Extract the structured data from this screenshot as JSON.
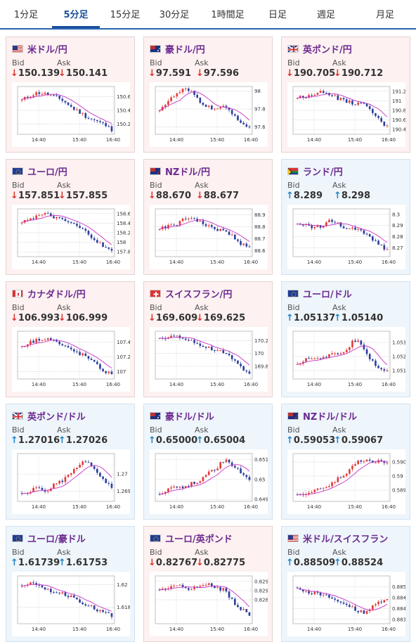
{
  "tabs": [
    {
      "label": "1分足",
      "active": false
    },
    {
      "label": "5分足",
      "active": true
    },
    {
      "label": "15分足",
      "active": false
    },
    {
      "label": "30分足",
      "active": false
    },
    {
      "label": "1時間足",
      "active": false
    },
    {
      "label": "日足",
      "active": false
    },
    {
      "label": "週足",
      "active": false
    },
    {
      "label": "月足",
      "active": false
    }
  ],
  "labels": {
    "bid": "Bid",
    "ask": "Ask"
  },
  "colors": {
    "down": "#d9342b",
    "up": "#1f86c8",
    "candle_up": "#e23b3b",
    "candle_down": "#2c3f9c",
    "ma": "#c431c4",
    "title": "#6b2a8f",
    "tab_active": "#1b4f9c"
  },
  "cards": [
    {
      "pair": "米ドル/円",
      "flags": [
        "us",
        "jp"
      ],
      "direction": "down",
      "bid": "150.139",
      "ask": "150.141",
      "x_ticks": [
        "14:40",
        "15:40",
        "16:40"
      ],
      "y_ticks": [
        "150.6",
        "150.4",
        "150.2"
      ],
      "y_range": [
        150.05,
        150.75
      ],
      "trend": [
        150.55,
        150.62,
        150.66,
        150.64,
        150.6,
        150.55,
        150.45,
        150.38,
        150.3,
        150.25,
        150.2,
        150.12
      ]
    },
    {
      "pair": "豪ドル/円",
      "flags": [
        "au",
        "jp"
      ],
      "direction": "down",
      "bid": "97.591",
      "ask": "97.596",
      "x_ticks": [
        "14:40",
        "15:40",
        "16:40"
      ],
      "y_ticks": [
        "98",
        "97.8",
        "97.6"
      ],
      "y_range": [
        97.52,
        98.05
      ],
      "trend": [
        97.8,
        97.88,
        97.96,
        98.02,
        97.98,
        97.88,
        97.82,
        97.8,
        97.82,
        97.75,
        97.65,
        97.58
      ]
    },
    {
      "pair": "英ポンド/円",
      "flags": [
        "gb",
        "jp"
      ],
      "direction": "down",
      "bid": "190.705",
      "ask": "190.712",
      "x_ticks": [
        "14:40",
        "15:40",
        "16:40"
      ],
      "y_ticks": [
        "191.2",
        "191",
        "190.8",
        "190.6",
        "190.4"
      ],
      "y_range": [
        190.3,
        191.3
      ],
      "trend": [
        191.05,
        191.1,
        191.15,
        191.18,
        191.15,
        191.05,
        190.98,
        190.95,
        190.92,
        190.8,
        190.6,
        190.45
      ]
    },
    {
      "pair": "ユーロ/円",
      "flags": [
        "eu",
        "jp"
      ],
      "direction": "down",
      "bid": "157.851",
      "ask": "157.855",
      "x_ticks": [
        "14:40",
        "15:40",
        "16:40"
      ],
      "y_ticks": [
        "158.6",
        "158.4",
        "158.2",
        "158",
        "157.8"
      ],
      "y_range": [
        157.7,
        158.7
      ],
      "trend": [
        158.45,
        158.5,
        158.55,
        158.58,
        158.52,
        158.45,
        158.4,
        158.3,
        158.2,
        158.05,
        157.9,
        157.8
      ]
    },
    {
      "pair": "NZドル/円",
      "flags": [
        "nz",
        "jp"
      ],
      "direction": "down",
      "bid": "88.670",
      "ask": "88.677",
      "x_ticks": [
        "14:40",
        "15:40",
        "16:40"
      ],
      "y_ticks": [
        "88.9",
        "88.8",
        "88.7",
        "88.6"
      ],
      "y_range": [
        88.55,
        88.95
      ],
      "trend": [
        88.78,
        88.8,
        88.82,
        88.86,
        88.88,
        88.84,
        88.8,
        88.78,
        88.76,
        88.72,
        88.66,
        88.62
      ]
    },
    {
      "pair": "ランド/円",
      "flags": [
        "za",
        "jp"
      ],
      "direction": "up",
      "bid": "8.289",
      "ask": "8.298",
      "x_ticks": [
        "14:40",
        "15:40",
        "16:40"
      ],
      "y_ticks": [
        "8.3",
        "8.29",
        "8.28",
        "8.27"
      ],
      "y_range": [
        8.262,
        8.305
      ],
      "trend": [
        8.29,
        8.292,
        8.288,
        8.29,
        8.296,
        8.292,
        8.288,
        8.286,
        8.285,
        8.28,
        8.272,
        8.268
      ]
    },
    {
      "pair": "カナダドル/円",
      "flags": [
        "ca",
        "jp"
      ],
      "direction": "down",
      "bid": "106.993",
      "ask": "106.999",
      "x_ticks": [
        "14:40",
        "15:40",
        "16:40"
      ],
      "y_ticks": [
        "107.4",
        "107.2",
        "107"
      ],
      "y_range": [
        106.9,
        107.55
      ],
      "trend": [
        107.35,
        107.4,
        107.44,
        107.46,
        107.42,
        107.35,
        107.3,
        107.25,
        107.2,
        107.1,
        107.02,
        106.96
      ]
    },
    {
      "pair": "スイスフラン/円",
      "flags": [
        "ch",
        "jp"
      ],
      "direction": "down",
      "bid": "169.609",
      "ask": "169.625",
      "x_ticks": [
        "14:40",
        "15:40",
        "16:40"
      ],
      "y_ticks": [
        "170.2",
        "170",
        "169.8"
      ],
      "y_range": [
        169.6,
        170.35
      ],
      "trend": [
        170.22,
        170.26,
        170.28,
        170.25,
        170.2,
        170.12,
        170.08,
        170.05,
        170.0,
        169.9,
        169.78,
        169.68
      ]
    },
    {
      "pair": "ユーロ/ドル",
      "flags": [
        "eu",
        "us"
      ],
      "direction": "up",
      "bid": "1.05137",
      "ask": "1.05140",
      "x_ticks": [
        "14:40",
        "15:40",
        "16:40"
      ],
      "y_ticks": [
        "1.053",
        "1.052",
        "1.051"
      ],
      "y_range": [
        1.0504,
        1.0538
      ],
      "trend": [
        1.0515,
        1.0518,
        1.052,
        1.0519,
        1.0521,
        1.0522,
        1.0525,
        1.0532,
        1.0528,
        1.0518,
        1.0512,
        1.051
      ]
    },
    {
      "pair": "英ポンド/ドル",
      "flags": [
        "gb",
        "us"
      ],
      "direction": "up",
      "bid": "1.27016",
      "ask": "1.27026",
      "x_ticks": [
        "14:40",
        "15:40",
        "16:40"
      ],
      "y_ticks": [
        "1.27",
        "1.269"
      ],
      "y_range": [
        1.2684,
        1.2712
      ],
      "trend": [
        1.2688,
        1.269,
        1.2692,
        1.269,
        1.2694,
        1.2696,
        1.27,
        1.2705,
        1.2708,
        1.2702,
        1.2696,
        1.2692
      ]
    },
    {
      "pair": "豪ドル/ドル",
      "flags": [
        "au",
        "us"
      ],
      "direction": "up",
      "bid": "0.65000",
      "ask": "0.65004",
      "x_ticks": [
        "14:40",
        "15:40",
        "16:40"
      ],
      "y_ticks": [
        "0.651",
        "0.65",
        "0.649"
      ],
      "y_range": [
        0.6489,
        0.6513
      ],
      "trend": [
        0.6493,
        0.6495,
        0.6497,
        0.6496,
        0.6498,
        0.65,
        0.6503,
        0.6506,
        0.651,
        0.6507,
        0.6503,
        0.65
      ]
    },
    {
      "pair": "NZドル/ドル",
      "flags": [
        "nz",
        "us"
      ],
      "direction": "up",
      "bid": "0.59053",
      "ask": "0.59067",
      "x_ticks": [
        "14:40",
        "15:40",
        "16:40"
      ],
      "y_ticks": [
        "0.5905",
        "0.59",
        "0.5895"
      ],
      "y_range": [
        0.5891,
        0.5908
      ],
      "trend": [
        0.5893,
        0.5894,
        0.5895,
        0.5896,
        0.5897,
        0.5899,
        0.5901,
        0.5904,
        0.5906,
        0.5905,
        0.5905,
        0.5905
      ]
    },
    {
      "pair": "ユーロ/豪ドル",
      "flags": [
        "eu",
        "au"
      ],
      "direction": "up",
      "bid": "1.61739",
      "ask": "1.61753",
      "x_ticks": [
        "14:40",
        "15:40",
        "16:40"
      ],
      "y_ticks": [
        "1.62",
        "1.618"
      ],
      "y_range": [
        1.6165,
        1.6208
      ],
      "trend": [
        1.62,
        1.6202,
        1.6198,
        1.6196,
        1.6194,
        1.6192,
        1.619,
        1.6186,
        1.6182,
        1.6178,
        1.6175,
        1.6172
      ]
    },
    {
      "pair": "ユーロ/英ポンド",
      "flags": [
        "eu",
        "gb"
      ],
      "direction": "down",
      "bid": "0.82767",
      "ask": "0.82775",
      "x_ticks": [
        "14:40",
        "15:40",
        "16:40"
      ],
      "y_ticks": [
        "0.8295",
        "0.829",
        "0.8285"
      ],
      "y_range": [
        0.8272,
        0.8298
      ],
      "trend": [
        0.829,
        0.8292,
        0.8293,
        0.8292,
        0.8291,
        0.8292,
        0.8293,
        0.8292,
        0.829,
        0.8284,
        0.828,
        0.8277
      ]
    },
    {
      "pair": "米ドル/スイスフラン",
      "flags": [
        "us",
        "ch"
      ],
      "direction": "up",
      "bid": "0.88509",
      "ask": "0.88524",
      "x_ticks": [
        "14:40",
        "15:40",
        "16:40"
      ],
      "y_ticks": [
        "0.885",
        "0.8845",
        "0.884",
        "0.8835"
      ],
      "y_range": [
        0.8833,
        0.8855
      ],
      "trend": [
        0.885,
        0.8848,
        0.8847,
        0.8846,
        0.8845,
        0.8843,
        0.8842,
        0.884,
        0.8838,
        0.884,
        0.8843,
        0.8845
      ]
    }
  ]
}
